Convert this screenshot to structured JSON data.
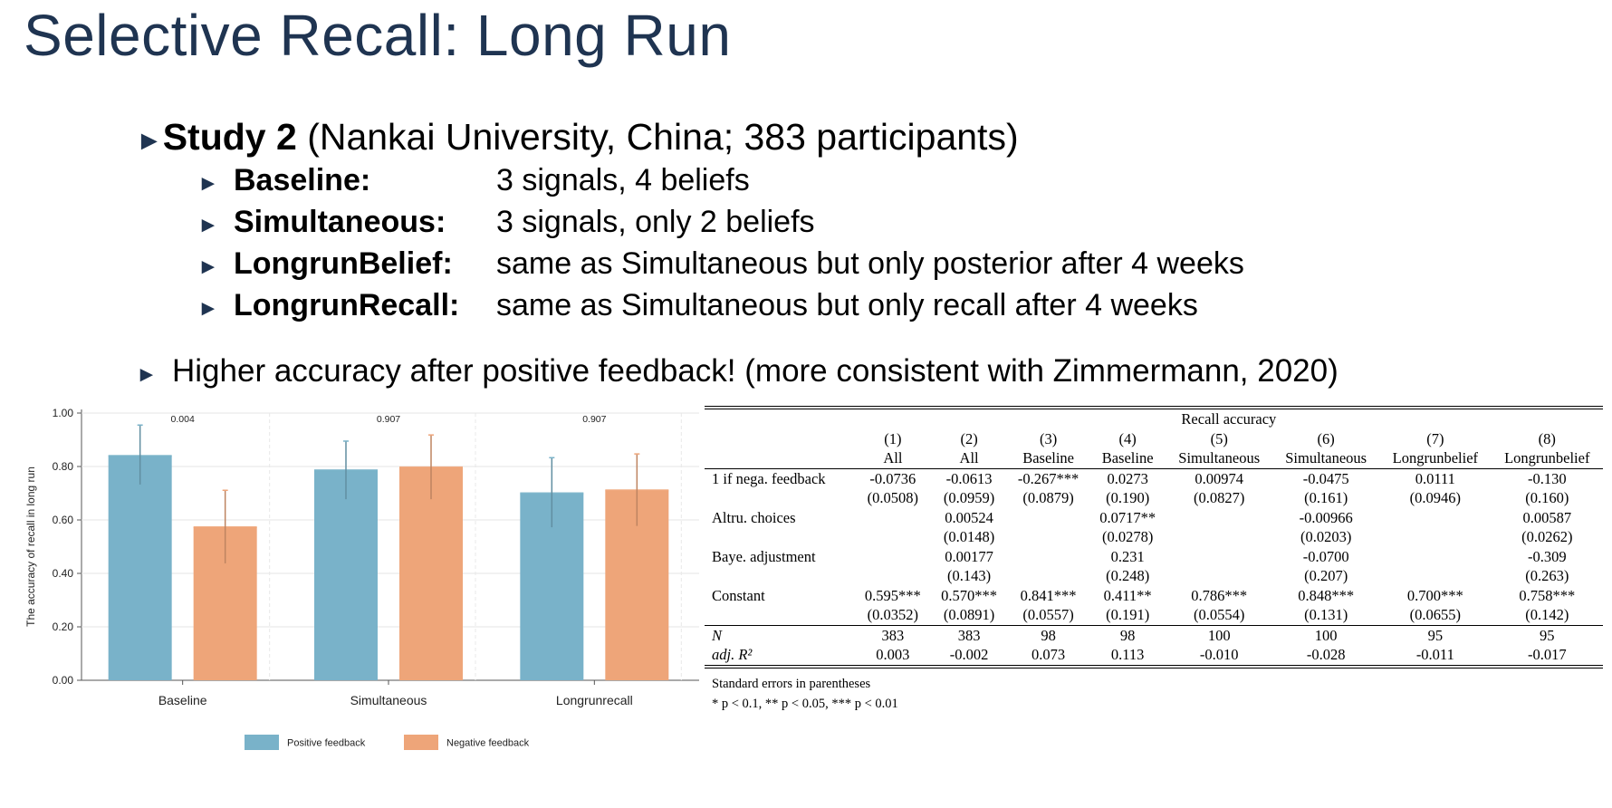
{
  "slide": {
    "title": "Selective Recall: Long Run",
    "bullet_marker": "►",
    "study": {
      "label": "Study 2",
      "detail": " (Nankai University, China; 383 participants)"
    },
    "treatments": [
      {
        "label": "Baseline",
        "desc": "3 signals, 4 beliefs"
      },
      {
        "label": "Simultaneous",
        "desc": "3 signals, only 2 beliefs"
      },
      {
        "label": "LongrunBelief",
        "desc": "same as Simultaneous but only posterior after 4 weeks"
      },
      {
        "label": "LongrunRecall",
        "desc": "same as Simultaneous but only recall after 4 weeks"
      }
    ],
    "finding": "Higher accuracy after positive feedback! (more consistent with Zimmermann, 2020)"
  },
  "chart_data": {
    "type": "bar",
    "categories": [
      "Baseline",
      "Simultaneous",
      "Longrunrecall"
    ],
    "ylabel": "The accuracy of recall in long run",
    "ylim": [
      0,
      1
    ],
    "yticks": [
      "0.00",
      "0.20",
      "0.40",
      "0.60",
      "0.80",
      "1.00"
    ],
    "p_values": [
      "0.004",
      "0.907",
      "0.907"
    ],
    "series": [
      {
        "name": "Positive feedback",
        "color": "#79b2c9",
        "values": [
          0.84,
          0.786,
          0.7
        ],
        "ci_low": [
          0.73,
          0.675,
          0.57
        ],
        "ci_high": [
          0.955,
          0.895,
          0.833
        ]
      },
      {
        "name": "Negative feedback",
        "color": "#eea579",
        "values": [
          0.573,
          0.797,
          0.711
        ],
        "ci_low": [
          0.435,
          0.675,
          0.575
        ],
        "ci_high": [
          0.711,
          0.918,
          0.847
        ]
      }
    ],
    "grid": true,
    "legend_position": "bottom"
  },
  "table": {
    "header_title": "Recall accuracy",
    "col_numbers": [
      "(1)",
      "(2)",
      "(3)",
      "(4)",
      "(5)",
      "(6)",
      "(7)",
      "(8)"
    ],
    "col_names": [
      "All",
      "All",
      "Baseline",
      "Baseline",
      "Simultaneous",
      "Simultaneous",
      "Longrunbelief",
      "Longrunbelief"
    ],
    "rows": [
      {
        "label": "1 if nega. feedback",
        "cells": [
          "-0.0736",
          "-0.0613",
          "-0.267***",
          "0.0273",
          "0.00974",
          "-0.0475",
          "0.0111",
          "-0.130"
        ]
      },
      {
        "label": "",
        "cells": [
          "(0.0508)",
          "(0.0959)",
          "(0.0879)",
          "(0.190)",
          "(0.0827)",
          "(0.161)",
          "(0.0946)",
          "(0.160)"
        ]
      },
      {
        "label": "Altru. choices",
        "cells": [
          "",
          "0.00524",
          "",
          "0.0717**",
          "",
          "-0.00966",
          "",
          "0.00587"
        ]
      },
      {
        "label": "",
        "cells": [
          "",
          "(0.0148)",
          "",
          "(0.0278)",
          "",
          "(0.0203)",
          "",
          "(0.0262)"
        ]
      },
      {
        "label": "Baye. adjustment",
        "cells": [
          "",
          "0.00177",
          "",
          "0.231",
          "",
          "-0.0700",
          "",
          "-0.309"
        ]
      },
      {
        "label": "",
        "cells": [
          "",
          "(0.143)",
          "",
          "(0.248)",
          "",
          "(0.207)",
          "",
          "(0.263)"
        ]
      },
      {
        "label": "Constant",
        "cells": [
          "0.595***",
          "0.570***",
          "0.841***",
          "0.411**",
          "0.786***",
          "0.848***",
          "0.700***",
          "0.758***"
        ]
      },
      {
        "label": "",
        "cells": [
          "(0.0352)",
          "(0.0891)",
          "(0.0557)",
          "(0.191)",
          "(0.0554)",
          "(0.131)",
          "(0.0655)",
          "(0.142)"
        ]
      }
    ],
    "stats": [
      {
        "label": "N",
        "cells": [
          "383",
          "383",
          "98",
          "98",
          "100",
          "100",
          "95",
          "95"
        ]
      },
      {
        "label": "adj. R²",
        "cells": [
          "0.003",
          "-0.002",
          "0.073",
          "0.113",
          "-0.010",
          "-0.028",
          "-0.011",
          "-0.017"
        ]
      }
    ],
    "note_se": "Standard errors in parentheses",
    "note_sig": "* p < 0.1, ** p < 0.05, *** p < 0.01"
  }
}
